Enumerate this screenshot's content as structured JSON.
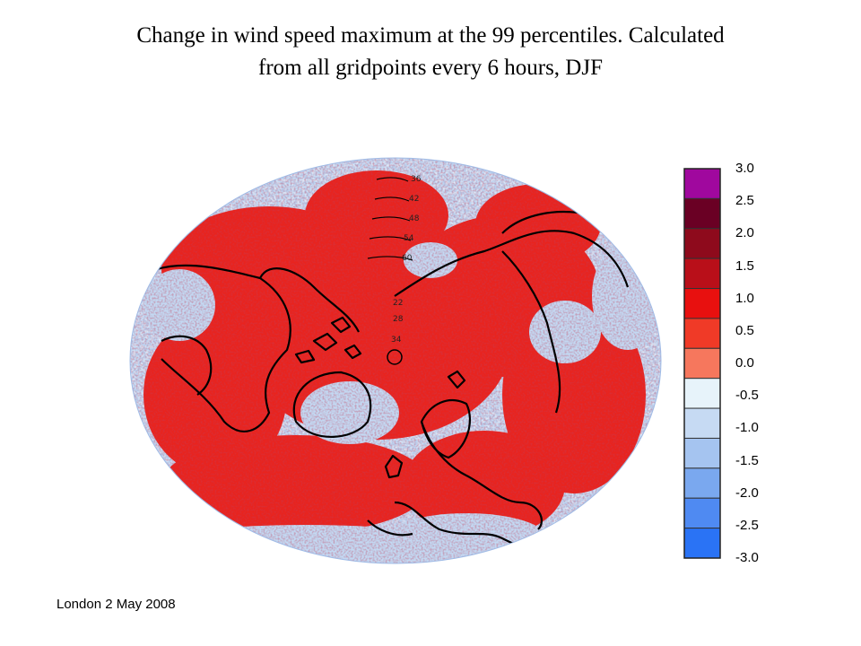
{
  "slide": {
    "title_line1": "Change in wind speed maximum at the 99 percentiles. Calculated",
    "title_line2": "from all gridpoints every 6 hours, DJF",
    "footer": "London 2 May 2008"
  },
  "map": {
    "projection": "north-polar-stereographic",
    "contour_labels": [
      "36",
      "42",
      "48",
      "54",
      "60",
      "22",
      "28",
      "34"
    ],
    "colors": {
      "land_outline": "#000000",
      "ocean_negative": "#b9d0ef",
      "positive": "#e8241f"
    }
  },
  "colorbar": {
    "tick_labels": [
      "3.0",
      "2.5",
      "2.0",
      "1.5",
      "1.0",
      "0.5",
      "0.0",
      "-0.5",
      "-1.0",
      "-1.5",
      "-2.0",
      "-2.5",
      "-3.0"
    ],
    "segment_colors": [
      "#a0089e",
      "#6a0024",
      "#8e0a1c",
      "#b90f19",
      "#e8100f",
      "#f03a27",
      "#f6775d",
      "#e7f3fa",
      "#c6daf3",
      "#a5c4f0",
      "#7aa8ef",
      "#4f8af2",
      "#2a73f5"
    ]
  }
}
